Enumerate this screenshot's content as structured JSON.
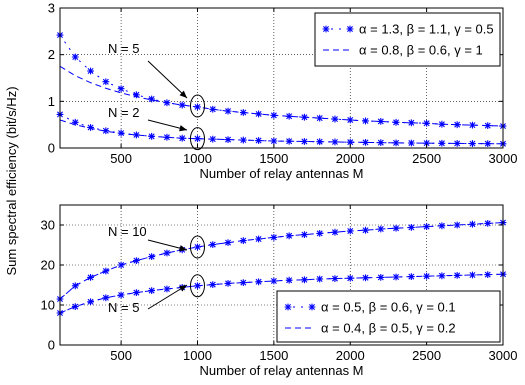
{
  "figure": {
    "ylabel": "Sum spectral efficiency (bit/s/Hz)"
  },
  "chart_data": [
    {
      "type": "line",
      "xlabel": "Number of relay antennas M",
      "xlim": [
        100,
        3000
      ],
      "ylim": [
        0,
        3
      ],
      "xticks": [
        500,
        1000,
        1500,
        2000,
        2500,
        3000
      ],
      "yticks": [
        0,
        1,
        2,
        3
      ],
      "grid": true,
      "legend_position": "top-right",
      "legend": [
        {
          "label": "α = 1.3, β = 1.1, γ = 0.5",
          "style": "star"
        },
        {
          "label": "α = 0.8, β = 0.6, γ = 1",
          "style": "dashed"
        }
      ],
      "annotations": [
        {
          "text": "N = 5",
          "target": [
            1000,
            0.9
          ]
        },
        {
          "text": "N = 2",
          "target": [
            1000,
            0.2
          ]
        }
      ],
      "x": [
        100,
        200,
        300,
        400,
        500,
        600,
        700,
        800,
        900,
        1000,
        1100,
        1200,
        1300,
        1400,
        1500,
        1600,
        1700,
        1800,
        1900,
        2000,
        2100,
        2200,
        2300,
        2400,
        2500,
        2600,
        2700,
        2800,
        2900,
        3000
      ],
      "series": [
        {
          "group": "N = 5",
          "style": "star",
          "values": [
            2.42,
            1.95,
            1.65,
            1.42,
            1.27,
            1.14,
            1.05,
            0.97,
            0.92,
            0.88,
            0.83,
            0.79,
            0.76,
            0.73,
            0.7,
            0.68,
            0.66,
            0.64,
            0.62,
            0.6,
            0.58,
            0.57,
            0.55,
            0.54,
            0.53,
            0.51,
            0.5,
            0.49,
            0.48,
            0.47
          ]
        },
        {
          "group": "N = 5",
          "style": "dashed",
          "values": [
            1.75,
            1.55,
            1.4,
            1.28,
            1.18,
            1.1,
            1.03,
            0.97,
            0.92,
            0.88,
            0.83,
            0.79,
            0.76,
            0.73,
            0.7,
            0.68,
            0.66,
            0.64,
            0.62,
            0.6,
            0.58,
            0.57,
            0.55,
            0.54,
            0.53,
            0.51,
            0.5,
            0.49,
            0.48,
            0.47
          ]
        },
        {
          "group": "N = 2",
          "style": "star",
          "values": [
            0.72,
            0.55,
            0.44,
            0.37,
            0.32,
            0.28,
            0.25,
            0.23,
            0.21,
            0.2,
            0.19,
            0.18,
            0.17,
            0.16,
            0.15,
            0.145,
            0.14,
            0.135,
            0.13,
            0.125,
            0.12,
            0.115,
            0.11,
            0.107,
            0.104,
            0.101,
            0.098,
            0.095,
            0.093,
            0.09
          ]
        },
        {
          "group": "N = 2",
          "style": "dashed",
          "values": [
            0.6,
            0.5,
            0.42,
            0.36,
            0.31,
            0.28,
            0.25,
            0.23,
            0.21,
            0.2,
            0.19,
            0.18,
            0.17,
            0.16,
            0.15,
            0.145,
            0.14,
            0.135,
            0.13,
            0.125,
            0.12,
            0.115,
            0.11,
            0.107,
            0.104,
            0.101,
            0.098,
            0.095,
            0.093,
            0.09
          ]
        }
      ]
    },
    {
      "type": "line",
      "xlabel": "Number of relay antennas M",
      "xlim": [
        100,
        3000
      ],
      "ylim": [
        0,
        35
      ],
      "xticks": [
        500,
        1000,
        1500,
        2000,
        2500,
        3000
      ],
      "yticks": [
        0,
        10,
        20,
        30
      ],
      "grid": true,
      "legend_position": "bottom-right",
      "legend": [
        {
          "label": "α = 0.5, β = 0.6, γ = 0.1",
          "style": "star"
        },
        {
          "label": "α = 0.4, β = 0.5, γ = 0.2",
          "style": "dashed"
        }
      ],
      "annotations": [
        {
          "text": "N = 10",
          "target": [
            1000,
            24.5
          ]
        },
        {
          "text": "N = 5",
          "target": [
            1000,
            14.8
          ]
        }
      ],
      "x": [
        100,
        200,
        300,
        400,
        500,
        600,
        700,
        800,
        900,
        1000,
        1100,
        1200,
        1300,
        1400,
        1500,
        1600,
        1700,
        1800,
        1900,
        2000,
        2100,
        2200,
        2300,
        2400,
        2500,
        2600,
        2700,
        2800,
        2900,
        3000
      ],
      "series": [
        {
          "group": "N = 10",
          "style": "star",
          "values": [
            11.5,
            14.8,
            16.9,
            18.5,
            20.0,
            21.1,
            22.1,
            23.0,
            23.8,
            24.5,
            25.1,
            25.6,
            26.1,
            26.5,
            26.9,
            27.3,
            27.6,
            27.9,
            28.2,
            28.5,
            28.7,
            29.0,
            29.2,
            29.4,
            29.6,
            29.8,
            30.0,
            30.2,
            30.4,
            30.6
          ]
        },
        {
          "group": "N = 10",
          "style": "dashed",
          "values": [
            11.5,
            14.8,
            16.9,
            18.5,
            20.0,
            21.1,
            22.1,
            23.0,
            23.8,
            24.5,
            25.1,
            25.6,
            26.1,
            26.5,
            26.9,
            27.3,
            27.6,
            27.9,
            28.2,
            28.5,
            28.7,
            29.0,
            29.2,
            29.4,
            29.6,
            29.8,
            30.0,
            30.2,
            30.4,
            30.6
          ]
        },
        {
          "group": "N = 5",
          "style": "star",
          "values": [
            8.0,
            9.6,
            10.8,
            11.8,
            12.5,
            13.1,
            13.6,
            14.0,
            14.4,
            14.8,
            15.1,
            15.4,
            15.6,
            15.8,
            16.0,
            16.2,
            16.3,
            16.5,
            16.6,
            16.7,
            16.8,
            16.9,
            17.0,
            17.1,
            17.2,
            17.3,
            17.4,
            17.5,
            17.6,
            17.7
          ]
        },
        {
          "group": "N = 5",
          "style": "dashed",
          "values": [
            8.0,
            9.6,
            10.8,
            11.8,
            12.5,
            13.1,
            13.6,
            14.0,
            14.4,
            14.8,
            15.1,
            15.4,
            15.6,
            15.8,
            16.0,
            16.2,
            16.3,
            16.5,
            16.6,
            16.7,
            16.8,
            16.9,
            17.0,
            17.1,
            17.2,
            17.3,
            17.4,
            17.5,
            17.6,
            17.7
          ]
        }
      ]
    }
  ]
}
